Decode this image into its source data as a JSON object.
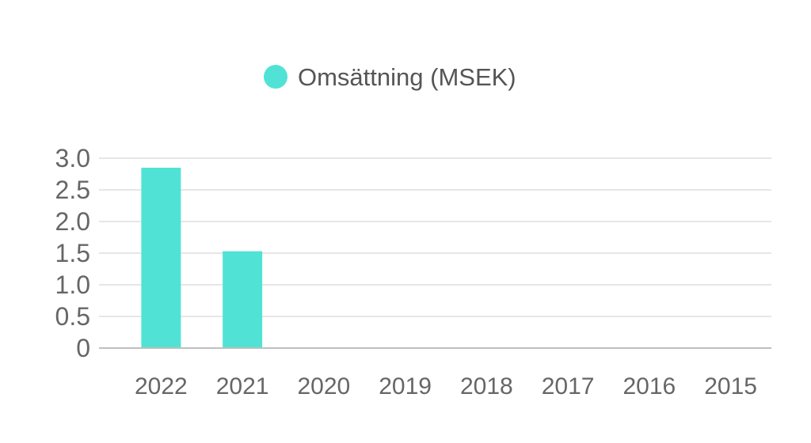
{
  "chart_data": {
    "type": "bar",
    "categories": [
      "2022",
      "2021",
      "2020",
      "2019",
      "2018",
      "2017",
      "2016",
      "2015"
    ],
    "series": [
      {
        "name": "Omsättning (MSEK)",
        "color": "#50e3d5",
        "values": [
          2.85,
          1.53,
          0,
          0,
          0,
          0,
          0,
          0
        ]
      }
    ],
    "ylim": [
      0,
      3
    ],
    "y_ticks": [
      {
        "value": 0,
        "label": "0"
      },
      {
        "value": 0.5,
        "label": "0.5"
      },
      {
        "value": 1,
        "label": "1.0"
      },
      {
        "value": 1.5,
        "label": "1.5"
      },
      {
        "value": 2,
        "label": "2.0"
      },
      {
        "value": 2.5,
        "label": "2.5"
      },
      {
        "value": 3,
        "label": "3.0"
      }
    ],
    "grid": true,
    "legend_position": "top-center",
    "colors": {
      "grid": "#e6e6e6",
      "axis": "#bfbfbf",
      "tick_text": "#666666",
      "legend_text": "#555555"
    }
  }
}
